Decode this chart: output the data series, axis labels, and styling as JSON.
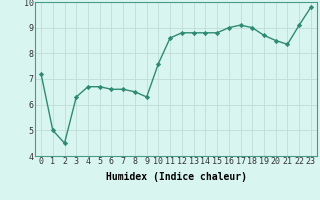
{
  "x": [
    0,
    1,
    2,
    3,
    4,
    5,
    6,
    7,
    8,
    9,
    10,
    11,
    12,
    13,
    14,
    15,
    16,
    17,
    18,
    19,
    20,
    21,
    22,
    23
  ],
  "y": [
    7.2,
    5.0,
    4.5,
    6.3,
    6.7,
    6.7,
    6.6,
    6.6,
    6.5,
    6.3,
    7.6,
    8.6,
    8.8,
    8.8,
    8.8,
    8.8,
    9.0,
    9.1,
    9.0,
    8.7,
    8.5,
    8.35,
    9.1,
    9.8
  ],
  "line_color": "#2e8b72",
  "marker": "D",
  "marker_size": 2.2,
  "bg_color": "#d9f5f0",
  "grid_color": "#c0ddd8",
  "xlabel": "Humidex (Indice chaleur)",
  "xlim": [
    -0.5,
    23.5
  ],
  "ylim": [
    4,
    10
  ],
  "yticks": [
    4,
    5,
    6,
    7,
    8,
    9,
    10
  ],
  "xticks": [
    0,
    1,
    2,
    3,
    4,
    5,
    6,
    7,
    8,
    9,
    10,
    11,
    12,
    13,
    14,
    15,
    16,
    17,
    18,
    19,
    20,
    21,
    22,
    23
  ],
  "label_fontsize": 7,
  "tick_fontsize": 6
}
